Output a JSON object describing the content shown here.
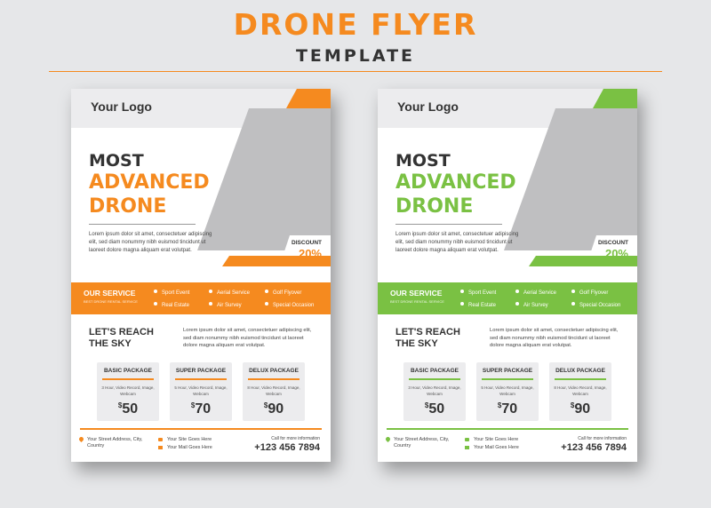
{
  "header": {
    "title": "DRONE FLYER",
    "subtitle": "TEMPLATE"
  },
  "colors": {
    "orange": "#f58a1f",
    "green": "#7ac143"
  },
  "flyer": {
    "logo": "Your Logo",
    "headline_line1": "MOST",
    "headline_line2": "ADVANCED",
    "headline_line3": "DRONE",
    "intro_text": "Lorem ipsum dolor sit amet, consectetuer adipiscing elit, sed diam nonummy nibh euismod tincidunt ut laoreet dolore magna aliquam erat volutpat.",
    "discount_label": "DISCOUNT",
    "discount_value": "20%",
    "service_title": "OUR SERVICE",
    "service_tagline": "BEST DRONE RENTAL SERVICE",
    "services": [
      "Sport Event",
      "Aerial Service",
      "Golf Flyover",
      "Real Estate",
      "Air Survey",
      "Special Occasion"
    ],
    "reach_title": "LET'S REACH THE SKY",
    "reach_text": "Lorem ipsum dolor sit amet, consectetuer adipiscing elit, sed diam nonummy nibh euismod tincidunt ut laoreet dolore magna aliquam erat volutpat.",
    "packages": [
      {
        "name": "BASIC PACKAGE",
        "desc": "3 Hour, Video Record, Image, Webcam",
        "currency": "$",
        "price": "50"
      },
      {
        "name": "SUPER PACKAGE",
        "desc": "5 Hour, Video Record, Image, Webcam",
        "currency": "$",
        "price": "70"
      },
      {
        "name": "DELUX PACKAGE",
        "desc": "8 Hour, Video Record, Image, Webcam",
        "currency": "$",
        "price": "90"
      }
    ],
    "address": "Your Street Address, City, Country",
    "website": "Your Site Goes Here",
    "email": "Your Mail Goes Here",
    "call_label": "Call for more information",
    "phone": "+123 456 7894"
  }
}
